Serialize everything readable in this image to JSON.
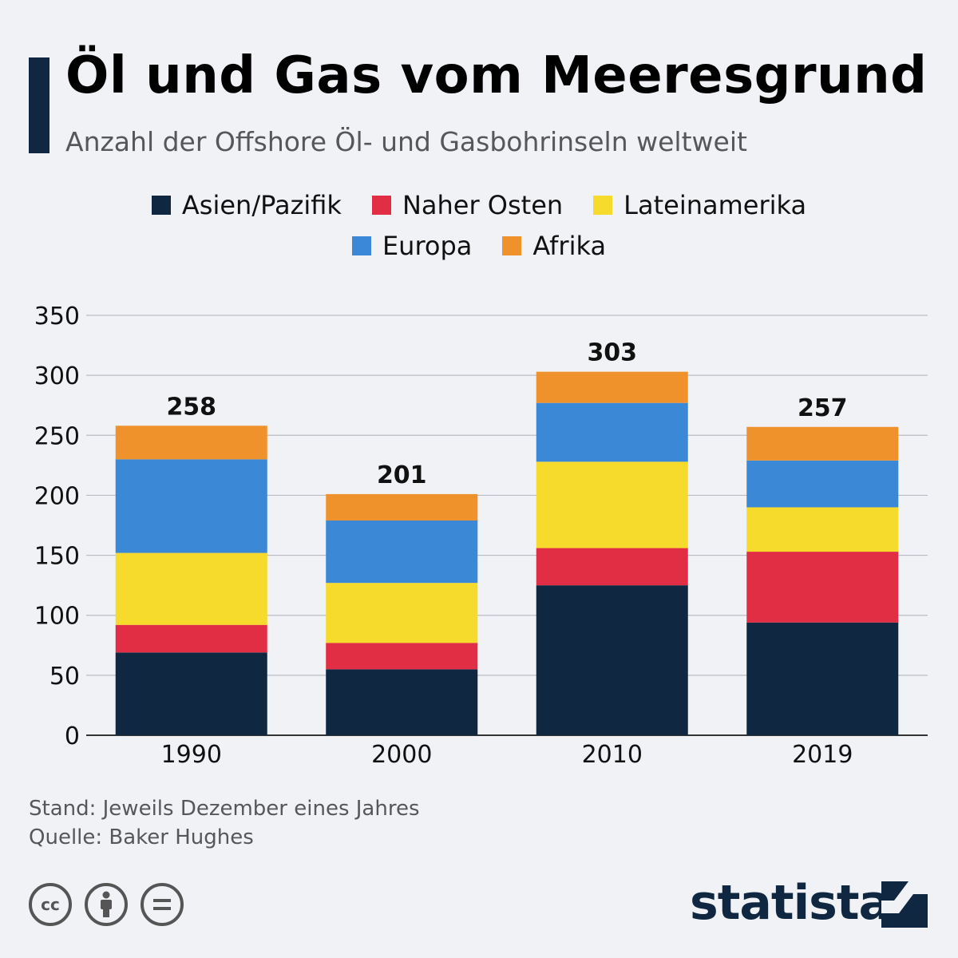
{
  "header": {
    "title": "Öl und Gas vom Meeresgrund",
    "subtitle": "Anzahl der Offshore Öl- und Gasbohrinseln weltweit"
  },
  "legend": [
    {
      "label": "Asien/Pazifik",
      "color": "#0f2741"
    },
    {
      "label": "Naher Osten",
      "color": "#e22e44"
    },
    {
      "label": "Lateinamerika",
      "color": "#f6da2c"
    },
    {
      "label": "Europa",
      "color": "#3a88d6"
    },
    {
      "label": "Afrika",
      "color": "#f0922c"
    }
  ],
  "chart_data": {
    "type": "bar",
    "stacked": true,
    "categories": [
      "1990",
      "2000",
      "2010",
      "2019"
    ],
    "series": [
      {
        "name": "Asien/Pazifik",
        "color": "#0f2741",
        "values": [
          69,
          55,
          125,
          94
        ]
      },
      {
        "name": "Naher Osten",
        "color": "#e22e44",
        "values": [
          23,
          22,
          31,
          59
        ]
      },
      {
        "name": "Lateinamerika",
        "color": "#f6da2c",
        "values": [
          60,
          50,
          72,
          37
        ]
      },
      {
        "name": "Europa",
        "color": "#3a88d6",
        "values": [
          78,
          52,
          49,
          39
        ]
      },
      {
        "name": "Afrika",
        "color": "#f0922c",
        "values": [
          28,
          22,
          26,
          28
        ]
      }
    ],
    "totals": [
      "258",
      "201",
      "303",
      "257"
    ],
    "yticks": [
      "0",
      "50",
      "100",
      "150",
      "200",
      "250",
      "300",
      "350"
    ],
    "ylim": [
      0,
      350
    ],
    "grid": true,
    "legend_position": "top"
  },
  "footer": {
    "note": "Stand: Jeweils Dezember eines Jahres",
    "source": "Quelle: Baker Hughes",
    "brand": "statista",
    "cc_icons": [
      "cc-icon",
      "by-attribution-icon",
      "no-derivatives-icon"
    ]
  }
}
